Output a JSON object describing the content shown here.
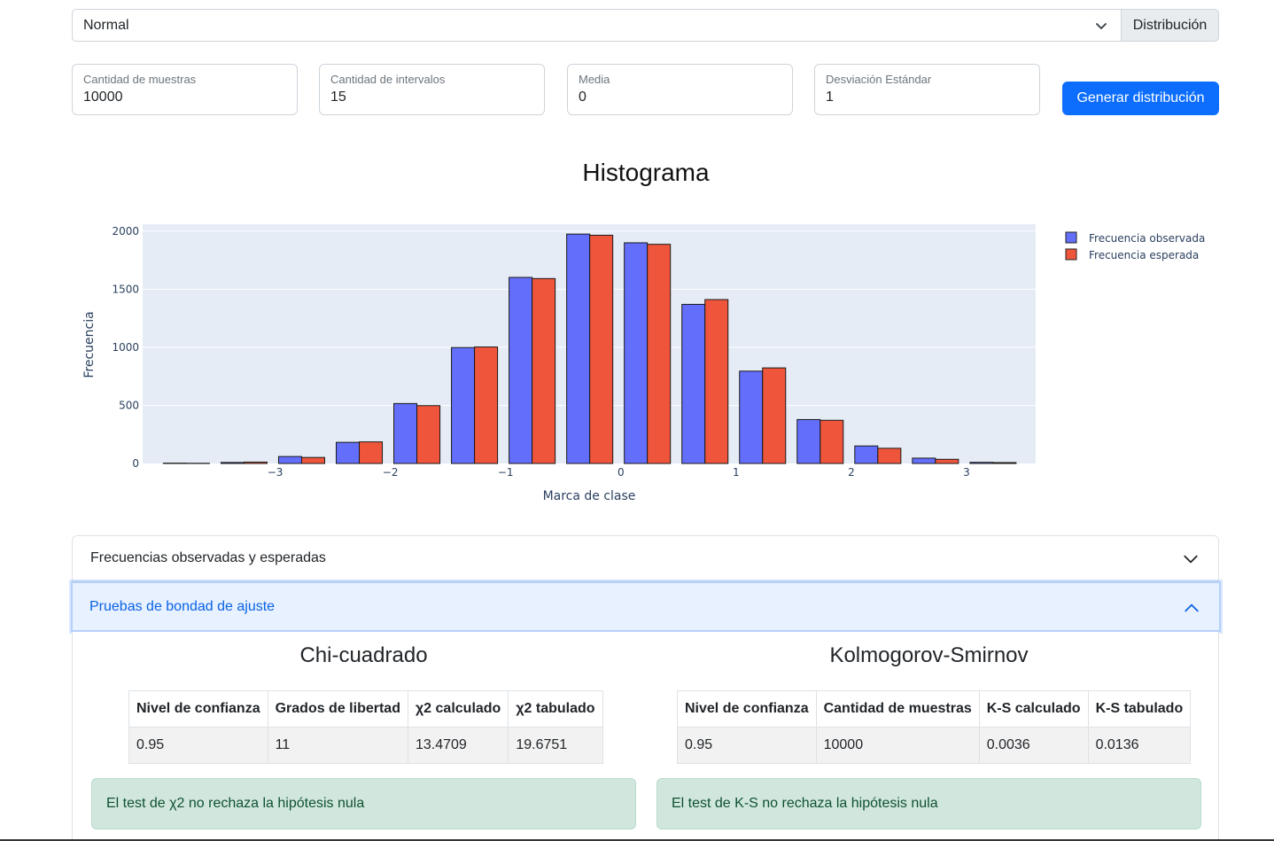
{
  "distribution_select": {
    "value": "Normal",
    "addon_label": "Distribución"
  },
  "fields": [
    {
      "label": "Cantidad de muestras",
      "value": "10000"
    },
    {
      "label": "Cantidad de intervalos",
      "value": "15"
    },
    {
      "label": "Media",
      "value": "0"
    },
    {
      "label": "Desviación Estándar",
      "value": "1"
    }
  ],
  "generate_button": "Generar distribución",
  "chart_data": {
    "type": "bar",
    "title": "Histograma",
    "xlabel": "Marca de clase",
    "ylabel": "Frecuencia",
    "x": [
      -3.77,
      -3.27,
      -2.77,
      -2.27,
      -1.77,
      -1.27,
      -0.77,
      -0.27,
      0.23,
      0.73,
      1.23,
      1.73,
      2.23,
      2.73,
      3.23
    ],
    "series": [
      {
        "name": "Frecuencia observada",
        "color": "#636efa",
        "values": [
          3,
          9,
          60,
          182,
          516,
          998,
          1602,
          1975,
          1900,
          1370,
          795,
          378,
          151,
          46,
          10
        ]
      },
      {
        "name": "Frecuencia esperada",
        "color": "#ef553b",
        "values": [
          2,
          12,
          52,
          186,
          498,
          1003,
          1592,
          1965,
          1887,
          1411,
          823,
          372,
          131,
          36,
          8
        ]
      }
    ],
    "xlim": [
      -4.15,
      3.6
    ],
    "ylim": [
      0,
      2060
    ],
    "xticks": [
      -3,
      -2,
      -1,
      0,
      1,
      2,
      3
    ],
    "xtick_labels": [
      "−3",
      "−2",
      "−1",
      "0",
      "1",
      "2",
      "3"
    ],
    "yticks": [
      0,
      500,
      1000,
      1500,
      2000
    ],
    "grid": true,
    "legend_position": "top-right"
  },
  "accordion": {
    "item1": "Frecuencias observadas y esperadas",
    "item2": "Pruebas de bondad de ajuste"
  },
  "chi": {
    "title": "Chi-cuadrado",
    "headers": [
      "Nivel de confianza",
      "Grados de libertad",
      "χ2 calculado",
      "χ2 tabulado"
    ],
    "row": [
      "0.95",
      "11",
      "13.4709",
      "19.6751"
    ],
    "alert": "El test de χ2 no rechaza la hipótesis nula"
  },
  "ks": {
    "title": "Kolmogorov-Smirnov",
    "headers": [
      "Nivel de confianza",
      "Cantidad de muestras",
      "K-S calculado",
      "K-S tabulado"
    ],
    "row": [
      "0.95",
      "10000",
      "0.0036",
      "0.0136"
    ],
    "alert": "El test de K-S no rechaza la hipótesis nula"
  }
}
